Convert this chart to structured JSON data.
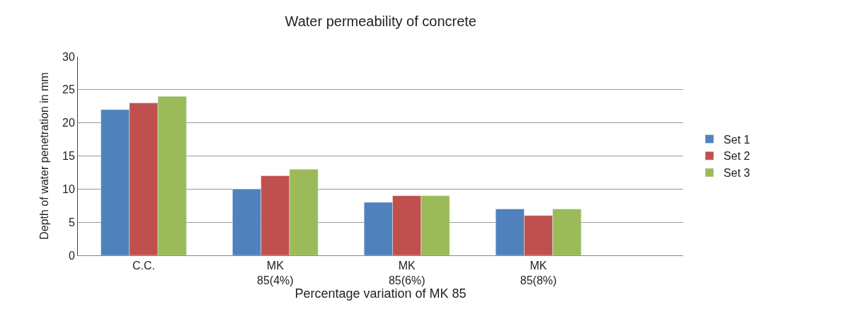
{
  "chart_data": {
    "type": "bar",
    "title": "Water permeability of concrete",
    "xlabel": "Percentage variation of MK 85",
    "ylabel": "Depth of water penetration in mm",
    "categories": [
      "C.C.",
      "MK\n85(4%)",
      "MK\n85(6%)",
      "MK\n85(8%)"
    ],
    "series": [
      {
        "name": "Set 1",
        "color": "#4f81bd",
        "values": [
          22,
          10,
          8,
          7
        ]
      },
      {
        "name": "Set 2",
        "color": "#c0504d",
        "values": [
          23,
          12,
          9,
          6
        ]
      },
      {
        "name": "Set 3",
        "color": "#9bbb59",
        "values": [
          24,
          13,
          9,
          7
        ]
      }
    ],
    "ylim": [
      0,
      30
    ],
    "yticks": [
      0,
      5,
      10,
      15,
      20,
      25,
      30
    ],
    "grid": "y",
    "legend": "right"
  }
}
